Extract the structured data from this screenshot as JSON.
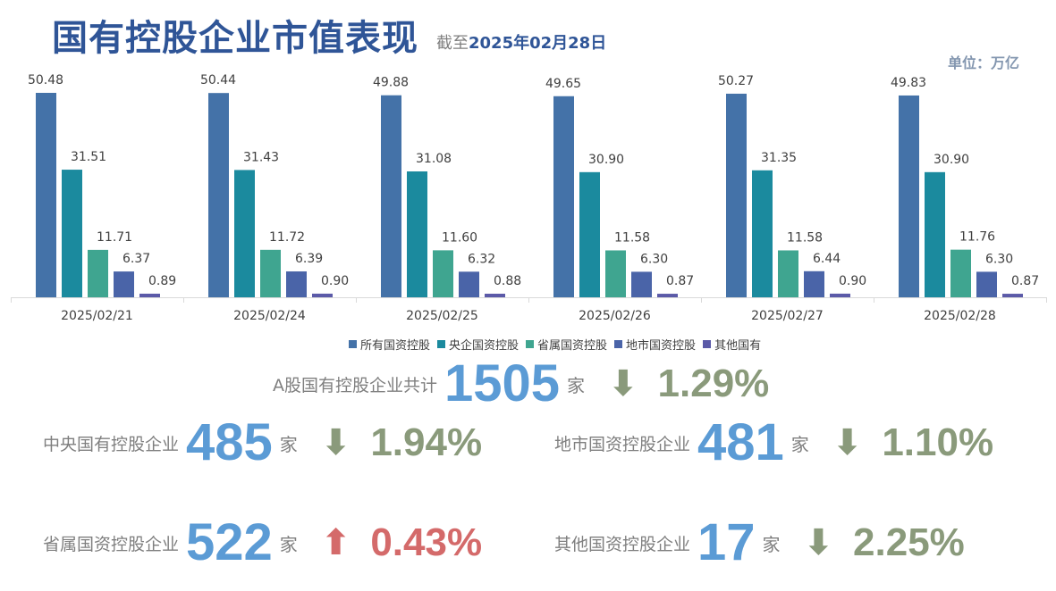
{
  "header": {
    "title": "国有控股企业市值表现",
    "asof_prefix": "截至",
    "asof_date": "2025年02月28日",
    "unit": "单位：万亿"
  },
  "chart_data": {
    "type": "bar",
    "categories": [
      "2025/02/21",
      "2025/02/24",
      "2025/02/25",
      "2025/02/26",
      "2025/02/27",
      "2025/02/28"
    ],
    "series": [
      {
        "name": "所有国资控股",
        "color": "#4472a8",
        "values": [
          50.48,
          50.44,
          49.88,
          49.65,
          50.27,
          49.83
        ]
      },
      {
        "name": "央企国资控股",
        "color": "#1b8a9e",
        "values": [
          31.51,
          31.43,
          31.08,
          30.9,
          31.35,
          30.9
        ]
      },
      {
        "name": "省属国资控股",
        "color": "#3fa590",
        "values": [
          11.71,
          11.72,
          11.6,
          11.58,
          11.58,
          11.76
        ]
      },
      {
        "name": "地市国资控股",
        "color": "#4a64a8",
        "values": [
          6.37,
          6.39,
          6.32,
          6.3,
          6.44,
          6.3
        ]
      },
      {
        "name": "其他国有",
        "color": "#5b5aa8",
        "values": [
          0.89,
          0.9,
          0.88,
          0.87,
          0.9,
          0.87
        ]
      }
    ],
    "legend": "bottom",
    "ylim": [
      0,
      52
    ],
    "grid": false
  },
  "stats": {
    "total": {
      "label": "A股国有控股企业共计",
      "count": "1505",
      "unit": "家",
      "direction": "down",
      "change": "1.29%"
    },
    "central": {
      "label": "中央国有控股企业",
      "count": "485",
      "unit": "家",
      "direction": "down",
      "change": "1.94%"
    },
    "local": {
      "label": "地市国资控股企业",
      "count": "481",
      "unit": "家",
      "direction": "down",
      "change": "1.10%"
    },
    "provincial": {
      "label": "省属国资控股企业",
      "count": "522",
      "unit": "家",
      "direction": "up",
      "change": "0.43%"
    },
    "other": {
      "label": "其他国资控股企业",
      "count": "17",
      "unit": "家",
      "direction": "down",
      "change": "2.25%"
    }
  },
  "colors": {
    "down": "#8a9a7b",
    "up": "#d46a6a",
    "count": "#5b9bd5"
  }
}
